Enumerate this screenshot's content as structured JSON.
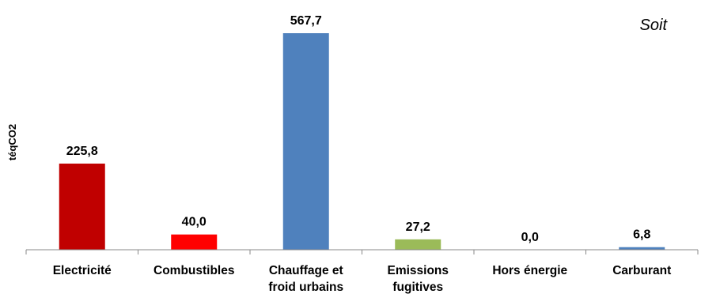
{
  "chart_data": {
    "type": "bar",
    "subtitle": "Soit",
    "ylabel": "téqCO2",
    "xlabel": "",
    "categories": [
      [
        "Electricité"
      ],
      [
        "Combustibles"
      ],
      [
        "Chauffage et",
        "froid urbains"
      ],
      [
        "Emissions",
        "fugitives"
      ],
      [
        "Hors énergie"
      ],
      [
        "Carburant"
      ]
    ],
    "values": [
      225.8,
      40.0,
      567.7,
      27.2,
      0.0,
      6.8
    ],
    "value_labels": [
      "225,8",
      "40,0",
      "567,7",
      "27,2",
      "0,0",
      "6,8"
    ],
    "colors": [
      "#C00000",
      "#FF0000",
      "#4F81BD",
      "#9BBB59",
      "#4F81BD",
      "#4F81BD"
    ],
    "ylim": [
      0,
      567.7
    ],
    "grid": false,
    "legend": "none"
  }
}
